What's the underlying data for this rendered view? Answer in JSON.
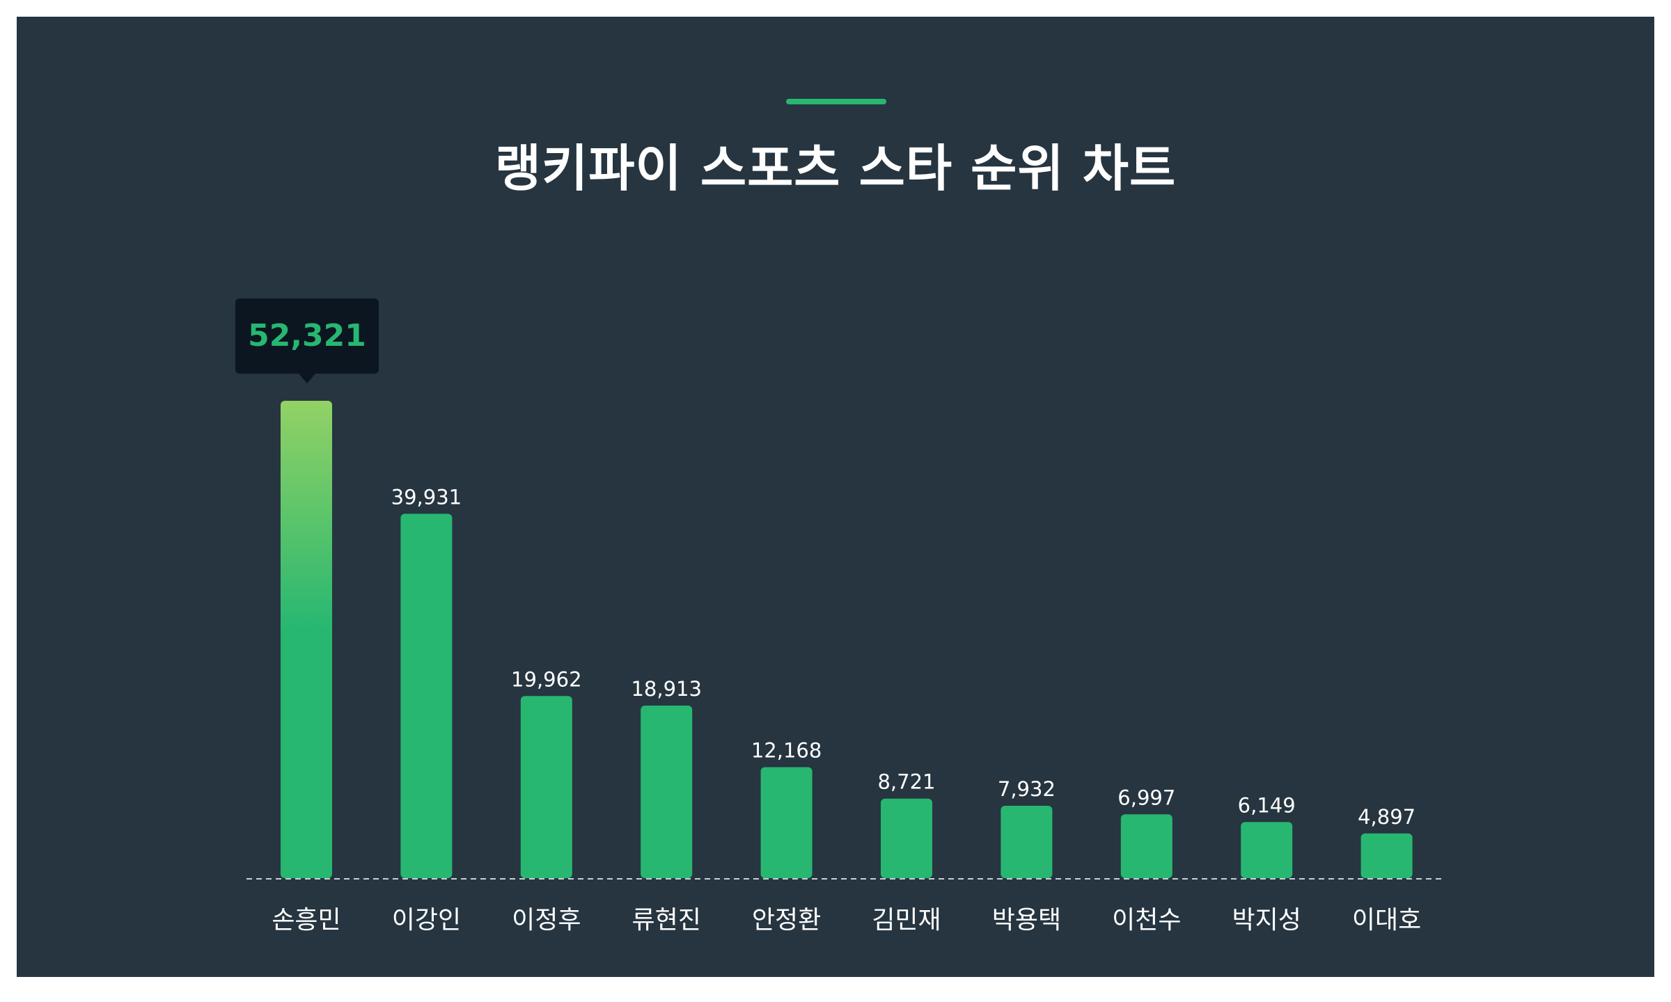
{
  "title": "랭키파이 스포츠 스타 순위 차트",
  "colors": {
    "background": "#263540",
    "accent": "#27b771",
    "bar": "#27b771",
    "bar_highlight_top": "#92d265",
    "tooltip_bg": "#0b1620",
    "text": "#ffffff",
    "baseline": "#c9d0d6"
  },
  "tooltip": {
    "value": "52,321",
    "category": "손흥민"
  },
  "chart_data": {
    "type": "bar",
    "title": "랭키파이 스포츠 스타 순위 차트",
    "xlabel": "",
    "ylabel": "",
    "categories": [
      "손흥민",
      "이강인",
      "이정후",
      "류현진",
      "안정환",
      "김민재",
      "박용택",
      "이천수",
      "박지성",
      "이대호"
    ],
    "values": [
      52321,
      39931,
      19962,
      18913,
      12168,
      8721,
      7932,
      6997,
      6149,
      4897
    ],
    "value_labels": [
      "52,321",
      "39,931",
      "19,962",
      "18,913",
      "12,168",
      "8,721",
      "7,932",
      "6,997",
      "6,149",
      "4,897"
    ],
    "highlighted_index": 0,
    "grid": false,
    "legend": "none"
  }
}
